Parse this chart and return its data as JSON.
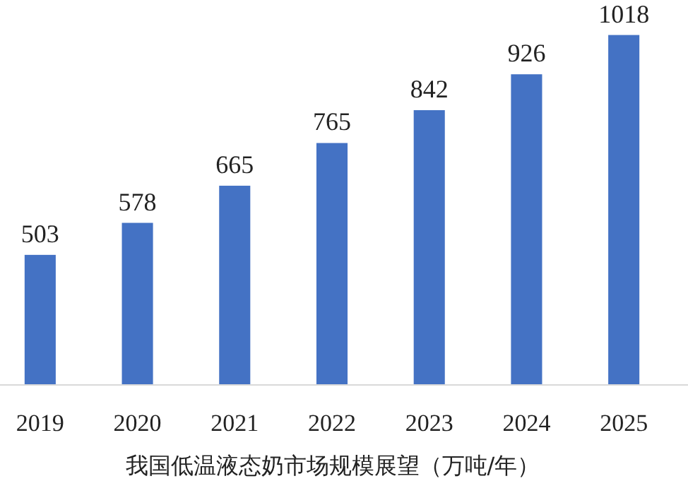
{
  "chart_data": {
    "type": "bar",
    "xlabel": "我国低温液态奶市场规模展望（万吨/年）",
    "categories": [
      "2019",
      "2020",
      "2021",
      "2022",
      "2023",
      "2024",
      "2025"
    ],
    "values": [
      503,
      578,
      665,
      765,
      842,
      926,
      1018
    ],
    "color": "#4472c4",
    "ylim": [
      200,
      1100
    ],
    "data_labels": true,
    "tick_labels": "x"
  }
}
